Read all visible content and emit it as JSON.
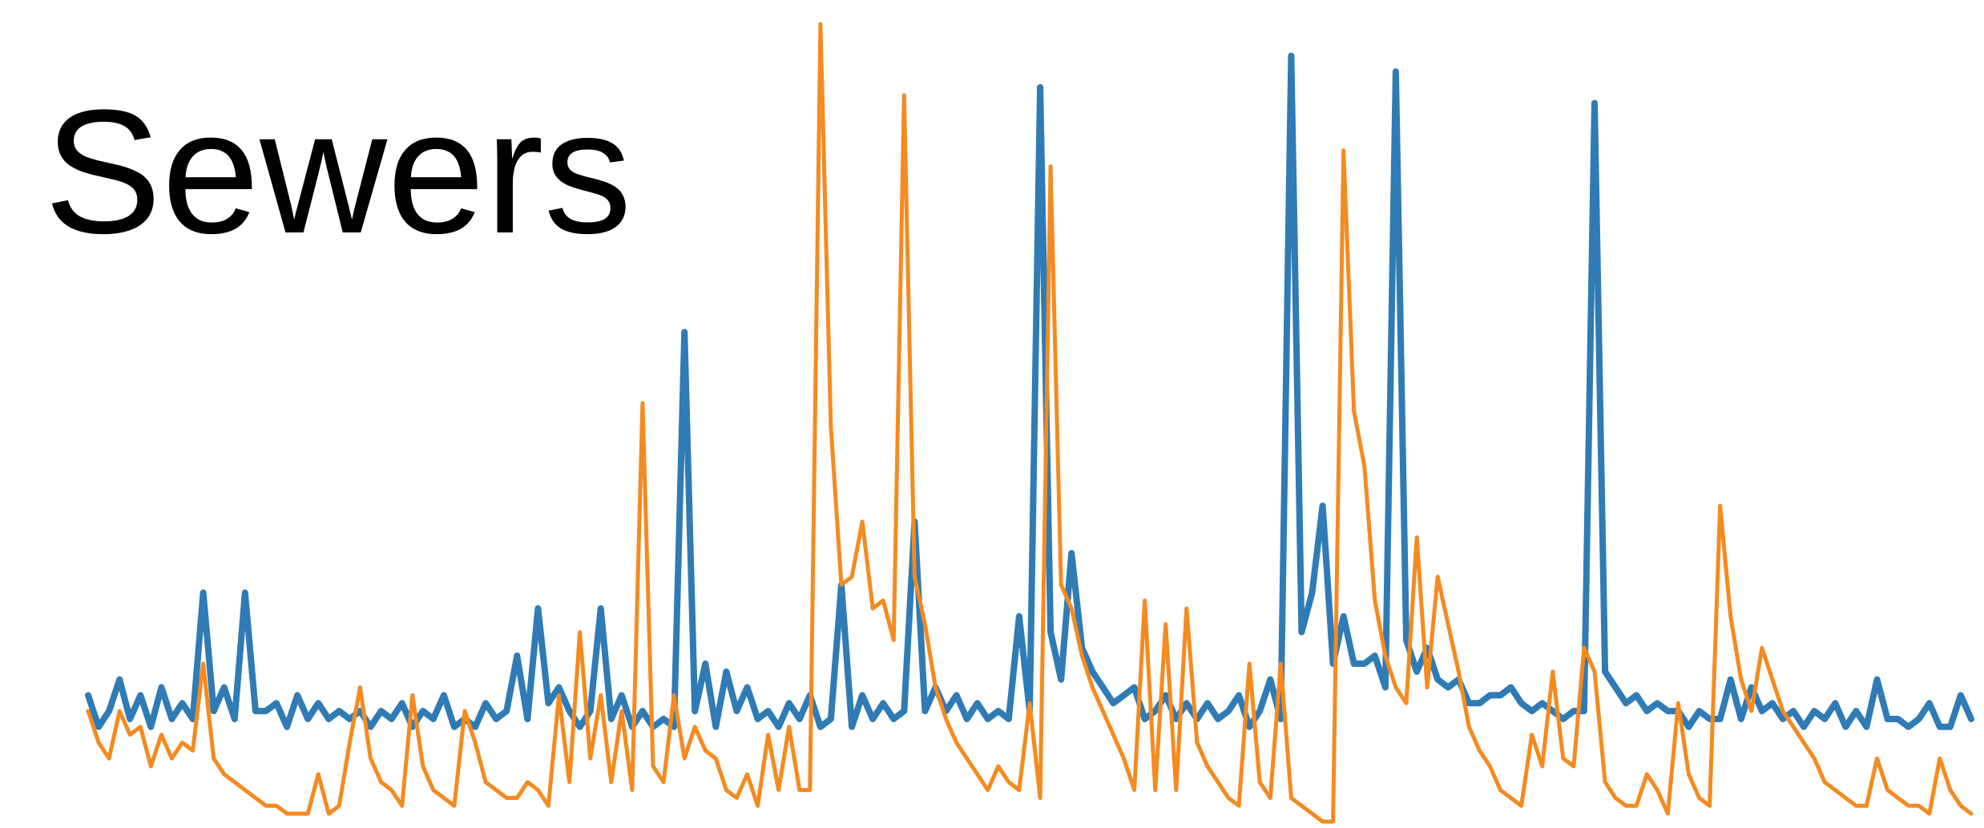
{
  "chart_data": {
    "type": "line",
    "title": "Sewers",
    "xlabel": "",
    "ylabel": "",
    "axes_visible": false,
    "grid": false,
    "legend": "none",
    "x": [
      0,
      1,
      2,
      3,
      4,
      5,
      6,
      7,
      8,
      9,
      10,
      11,
      12,
      13,
      14,
      15,
      16,
      17,
      18,
      19,
      20,
      21,
      22,
      23,
      24,
      25,
      26,
      27,
      28,
      29,
      30,
      31,
      32,
      33,
      34,
      35,
      36,
      37,
      38,
      39,
      40,
      41,
      42,
      43,
      44,
      45,
      46,
      47,
      48,
      49,
      50,
      51,
      52,
      53,
      54,
      55,
      56,
      57,
      58,
      59,
      60,
      61,
      62,
      63,
      64,
      65,
      66,
      67,
      68,
      69,
      70,
      71,
      72,
      73,
      74,
      75,
      76,
      77,
      78,
      79,
      80,
      81,
      82,
      83,
      84,
      85,
      86,
      87,
      88,
      89,
      90,
      91,
      92,
      93,
      94,
      95,
      96,
      97,
      98,
      99,
      100,
      101,
      102,
      103,
      104,
      105,
      106,
      107,
      108,
      109,
      110,
      111,
      112,
      113,
      114,
      115,
      116,
      117,
      118,
      119,
      120,
      121,
      122,
      123,
      124,
      125,
      126,
      127,
      128,
      129,
      130,
      131,
      132,
      133,
      134,
      135,
      136,
      137,
      138,
      139,
      140,
      141,
      142,
      143,
      144,
      145,
      146,
      147,
      148,
      149,
      150,
      151,
      152,
      153,
      154,
      155,
      156,
      157,
      158,
      159,
      160,
      161,
      162,
      163,
      164,
      165,
      166,
      167,
      168,
      169,
      170,
      171,
      172,
      173,
      174,
      175,
      176,
      177,
      178,
      179,
      180
    ],
    "xlim": [
      0,
      180
    ],
    "ylim": [
      0,
      100
    ],
    "series": [
      {
        "color": "#2f7bb5",
        "values": [
          16,
          12,
          14,
          18,
          13,
          16,
          12,
          17,
          13,
          15,
          13,
          29,
          14,
          17,
          13,
          29,
          14,
          14,
          15,
          12,
          16,
          13,
          15,
          13,
          14,
          13,
          14,
          12,
          14,
          13,
          15,
          12,
          14,
          13,
          16,
          12,
          13,
          12,
          15,
          13,
          14,
          21,
          13,
          27,
          15,
          17,
          14,
          12,
          14,
          27,
          13,
          16,
          12,
          14,
          12,
          13,
          12,
          62,
          14,
          20,
          12,
          19,
          14,
          17,
          13,
          14,
          12,
          15,
          13,
          16,
          12,
          13,
          30,
          12,
          16,
          13,
          15,
          13,
          14,
          38,
          14,
          17,
          14,
          16,
          13,
          15,
          13,
          14,
          13,
          26,
          14,
          93,
          24,
          18,
          34,
          22,
          19,
          17,
          15,
          16,
          17,
          13,
          14,
          16,
          13,
          15,
          13,
          15,
          13,
          14,
          16,
          12,
          14,
          18,
          13,
          97,
          24,
          29,
          40,
          20,
          26,
          20,
          20,
          21,
          17,
          95,
          23,
          19,
          22,
          18,
          17,
          18,
          15,
          15,
          16,
          16,
          17,
          15,
          14,
          15,
          14,
          13,
          14,
          14,
          91,
          19,
          17,
          15,
          16,
          14,
          15,
          14,
          14,
          12,
          14,
          13,
          13,
          18,
          13,
          17,
          14,
          15,
          13,
          14,
          12,
          14,
          13,
          15,
          12,
          14,
          12,
          18,
          13,
          13,
          12,
          13,
          15,
          12,
          12,
          16,
          13
        ]
      },
      {
        "color": "#f58a1f",
        "values": [
          14,
          10,
          8,
          14,
          11,
          12,
          7,
          11,
          8,
          10,
          9,
          20,
          8,
          6,
          5,
          4,
          3,
          2,
          2,
          1,
          1,
          1,
          6,
          1,
          2,
          10,
          17,
          8,
          5,
          4,
          2,
          16,
          7,
          4,
          3,
          2,
          14,
          10,
          5,
          4,
          3,
          3,
          5,
          4,
          2,
          16,
          5,
          24,
          8,
          16,
          5,
          14,
          4,
          53,
          7,
          5,
          16,
          8,
          12,
          9,
          8,
          4,
          3,
          6,
          2,
          11,
          4,
          12,
          4,
          4,
          101,
          50,
          30,
          31,
          38,
          27,
          28,
          23,
          92,
          31,
          25,
          17,
          13,
          10,
          8,
          6,
          4,
          7,
          5,
          4,
          15,
          3,
          83,
          30,
          27,
          21,
          17,
          14,
          11,
          8,
          4,
          28,
          4,
          25,
          4,
          27,
          10,
          7,
          5,
          3,
          2,
          20,
          5,
          3,
          20,
          3,
          2,
          1,
          0,
          0,
          85,
          52,
          45,
          28,
          21,
          17,
          15,
          36,
          17,
          31,
          25,
          19,
          12,
          9,
          7,
          4,
          3,
          2,
          11,
          7,
          19,
          8,
          7,
          22,
          19,
          5,
          3,
          2,
          2,
          6,
          4,
          1,
          15,
          6,
          3,
          2,
          40,
          26,
          18,
          14,
          22,
          18,
          14,
          12,
          10,
          8,
          5,
          4,
          3,
          2,
          2,
          8,
          4,
          3,
          2,
          2,
          1,
          8,
          4,
          2,
          1
        ]
      }
    ]
  }
}
